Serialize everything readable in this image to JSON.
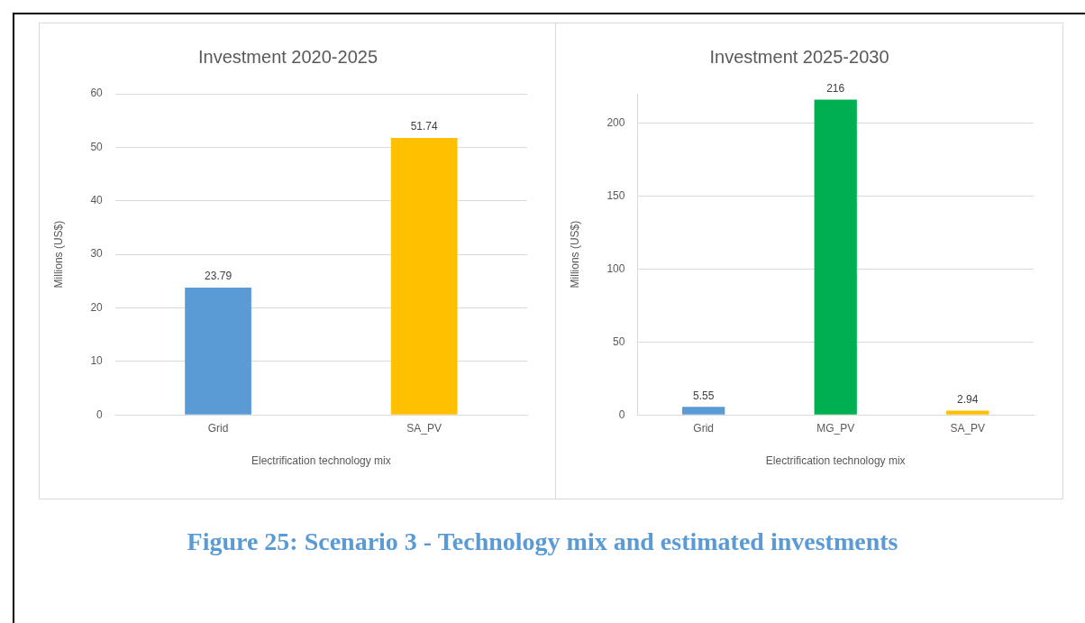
{
  "chart_data": [
    {
      "type": "bar",
      "title": "Investment 2020-2025",
      "xlabel": "Electrification technology mix",
      "ylabel": "Millions (US$)",
      "categories": [
        "Grid",
        "SA_PV"
      ],
      "values": [
        23.79,
        51.74
      ],
      "colors": [
        "#5b9bd5",
        "#ffc000"
      ],
      "ylim": [
        0,
        60
      ],
      "yticks": [
        0,
        10,
        20,
        30,
        40,
        50,
        60
      ],
      "grid": "y",
      "legend": false,
      "data_labels": true
    },
    {
      "type": "bar",
      "title": "Investment 2025-2030",
      "xlabel": "Electrification technology mix",
      "ylabel": "Millions (US$)",
      "categories": [
        "Grid",
        "MG_PV",
        "SA_PV"
      ],
      "values": [
        5.55,
        216,
        2.94
      ],
      "colors": [
        "#5b9bd5",
        "#00b050",
        "#ffc000"
      ],
      "ylim": [
        0,
        220
      ],
      "yticks": [
        0,
        50,
        100,
        150,
        200
      ],
      "grid": "y",
      "legend": false,
      "data_labels": true,
      "annotations": [
        "Figure 25: Scenario 3 - Technology mix and estimated investments"
      ]
    }
  ]
}
